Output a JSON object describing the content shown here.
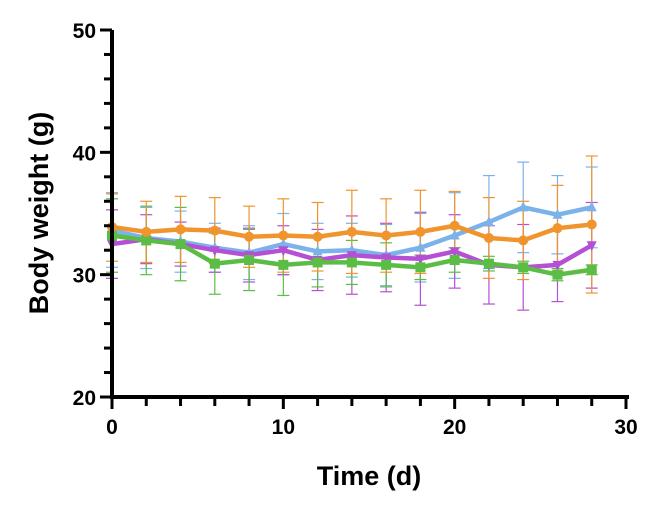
{
  "chart_data": {
    "type": "line",
    "xlabel": "Time (d)",
    "ylabel": "Body weight  (g)",
    "xlim": [
      0,
      30
    ],
    "ylim": [
      20,
      50
    ],
    "x_ticks": [
      "0",
      "10",
      "20",
      "30"
    ],
    "y_ticks": [
      "20",
      "30",
      "40",
      "50"
    ],
    "grid": false,
    "legend": "none",
    "x": [
      0,
      2,
      4,
      6,
      8,
      10,
      12,
      14,
      16,
      18,
      20,
      22,
      24,
      26,
      28
    ],
    "series": [
      {
        "color": "#7cb2ea",
        "marker": "triangle",
        "values": [
          33.6,
          33.0,
          32.7,
          32.2,
          31.8,
          32.5,
          31.9,
          32.0,
          31.6,
          32.2,
          33.2,
          34.3,
          35.5,
          34.9,
          35.5
        ],
        "errors": [
          3.0,
          2.5,
          2.5,
          2.0,
          2.2,
          2.5,
          2.3,
          2.2,
          2.5,
          2.8,
          3.5,
          3.8,
          3.7,
          3.2,
          3.3
        ]
      },
      {
        "color": "#b44fd6",
        "marker": "triangle-down",
        "values": [
          32.5,
          32.9,
          32.5,
          32.0,
          31.6,
          32.0,
          31.2,
          31.6,
          31.4,
          31.3,
          31.9,
          30.8,
          30.6,
          30.8,
          32.4
        ],
        "errors": [
          2.8,
          2.0,
          1.8,
          1.8,
          2.2,
          2.0,
          2.5,
          3.2,
          2.8,
          3.8,
          3.0,
          3.2,
          3.5,
          3.0,
          3.5
        ]
      },
      {
        "color": "#5bbd45",
        "marker": "square",
        "values": [
          33.2,
          32.8,
          32.5,
          30.9,
          31.2,
          30.8,
          31.0,
          31.0,
          30.8,
          30.6,
          31.2,
          30.9,
          30.6,
          30.0,
          30.4
        ],
        "errors": [
          3.0,
          2.8,
          3.0,
          2.5,
          2.5,
          2.5,
          2.0,
          1.8,
          1.8,
          1.0,
          1.0,
          0.6,
          0.5,
          0.5,
          0.4
        ]
      },
      {
        "color": "#f0952e",
        "marker": "circle",
        "values": [
          33.9,
          33.5,
          33.7,
          33.6,
          33.1,
          33.2,
          33.1,
          33.5,
          33.2,
          33.5,
          34.0,
          33.0,
          32.8,
          33.8,
          34.1
        ],
        "errors": [
          2.8,
          2.5,
          2.7,
          2.7,
          2.5,
          3.0,
          2.8,
          3.4,
          3.0,
          3.4,
          2.8,
          3.3,
          3.2,
          3.5,
          5.6
        ]
      }
    ]
  }
}
